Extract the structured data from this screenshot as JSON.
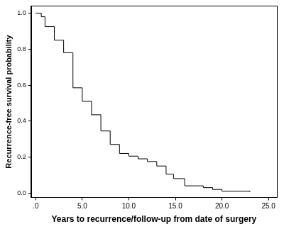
{
  "chart_data": {
    "type": "line",
    "x_label": "Years to recurrence/follow-up from date of surgery",
    "y_label": "Recurrence-free survival probability",
    "x": [
      0,
      0.6,
      1.0,
      2.0,
      3.0,
      4.0,
      5.0,
      6.0,
      7.0,
      8.0,
      9.0,
      10.0,
      11.0,
      12.0,
      13.0,
      14.0,
      14.8,
      16.0,
      18.0,
      19.0,
      20.0,
      23.0
    ],
    "values": [
      1.0,
      0.98,
      0.925,
      0.85,
      0.78,
      0.585,
      0.51,
      0.435,
      0.345,
      0.27,
      0.22,
      0.205,
      0.19,
      0.175,
      0.15,
      0.105,
      0.08,
      0.04,
      0.03,
      0.02,
      0.01,
      0.005
    ],
    "color": "#000000",
    "line_style": "step",
    "marker": "none",
    "xlim": [
      -0.5,
      25.9
    ],
    "xticks": [
      {
        "value": 0,
        "label": ".0"
      },
      {
        "value": 5,
        "label": "5.0"
      },
      {
        "value": 10,
        "label": "10.0"
      },
      {
        "value": 15,
        "label": "15.0"
      },
      {
        "value": 20,
        "label": "20.0"
      },
      {
        "value": 25,
        "label": "25.0"
      }
    ],
    "ylim": [
      -0.025,
      1.04
    ],
    "yticks": [
      {
        "value": 0,
        "label": "0.0"
      },
      0.2,
      0.4,
      0.6,
      0.8,
      {
        "value": 1,
        "label": "1.0"
      }
    ],
    "grid": false
  }
}
